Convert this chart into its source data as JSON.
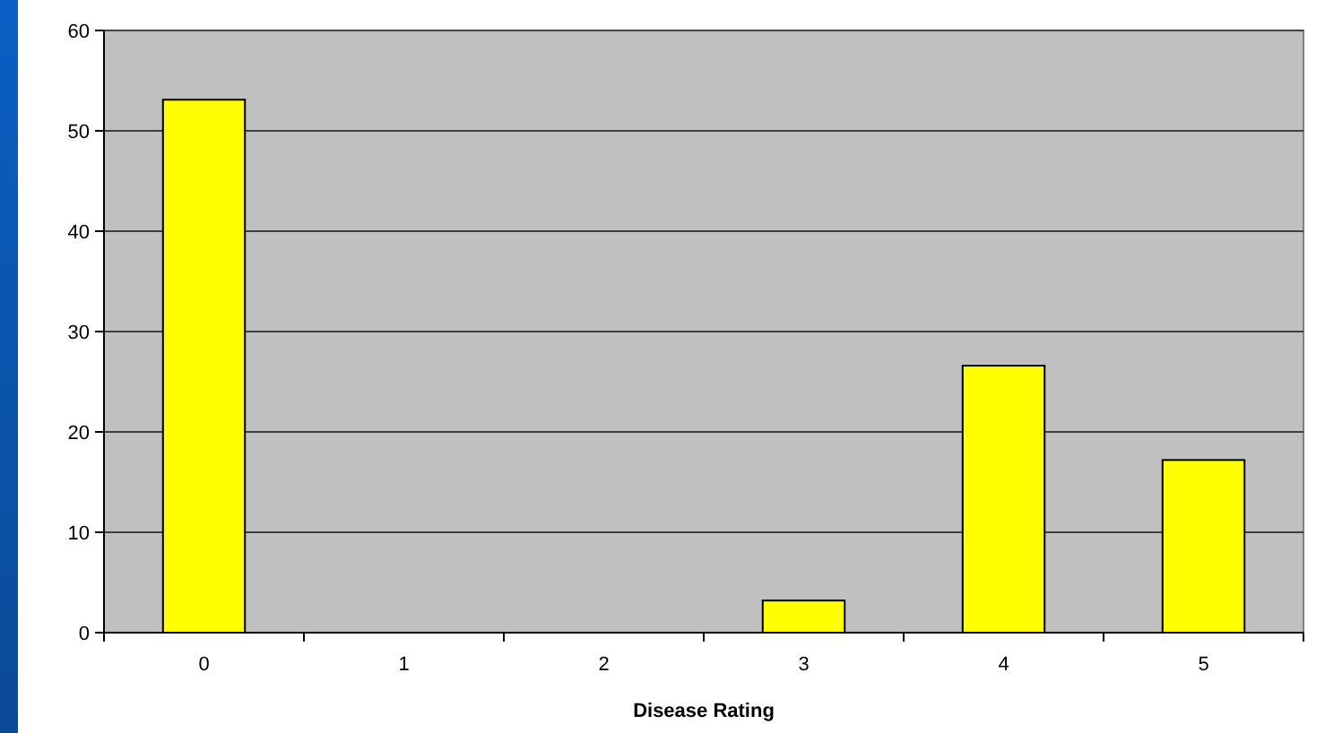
{
  "chart_data": {
    "type": "bar",
    "xlabel": "Disease Rating",
    "categories": [
      "0",
      "1",
      "2",
      "3",
      "4",
      "5"
    ],
    "values": [
      53.1,
      0,
      0,
      3.2,
      26.6,
      17.2
    ],
    "color": "#ffff00",
    "ylim": [
      0,
      60
    ],
    "yticks": [
      0,
      10,
      20,
      30,
      40,
      50,
      60
    ],
    "grid": "y"
  }
}
